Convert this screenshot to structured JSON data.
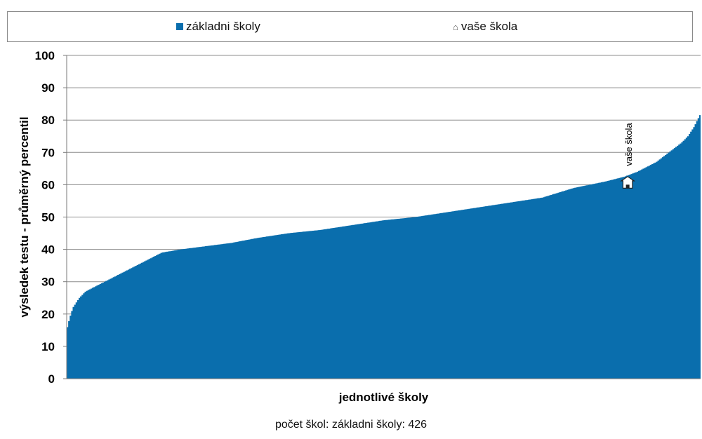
{
  "chart_data": {
    "type": "area",
    "legend": [
      {
        "label": "základni školy",
        "color": "#0a6ead",
        "marker": "square"
      },
      {
        "label": "vaše škola",
        "marker": "house-icon"
      }
    ],
    "legend_position": "top",
    "xlabel": "jednotlivé školy",
    "ylabel": "výsledek testu - průměrný percentil",
    "ylim": [
      0,
      100
    ],
    "yticks": [
      0,
      10,
      20,
      30,
      40,
      50,
      60,
      70,
      80,
      90,
      100
    ],
    "grid": true,
    "series": [
      {
        "name": "základni školy",
        "color": "#0a6ead",
        "x_fraction": [
          0,
          0.005,
          0.01,
          0.02,
          0.03,
          0.05,
          0.07,
          0.09,
          0.12,
          0.15,
          0.18,
          0.22,
          0.26,
          0.3,
          0.35,
          0.4,
          0.45,
          0.5,
          0.55,
          0.6,
          0.65,
          0.7,
          0.75,
          0.8,
          0.85,
          0.88,
          0.9,
          0.93,
          0.95,
          0.97,
          0.98,
          0.99,
          1.0
        ],
        "values": [
          15,
          19,
          22,
          25,
          27,
          29,
          31,
          33,
          36,
          39,
          40,
          41,
          42,
          43.5,
          45,
          46,
          47.5,
          49,
          50,
          51.5,
          53,
          54.5,
          56,
          59,
          61,
          62.5,
          64,
          67,
          70,
          73,
          75,
          78,
          82
        ]
      }
    ],
    "annotations": [
      {
        "label": "vaše škola",
        "icon": "house-icon",
        "x_fraction": 0.885,
        "value": 61
      }
    ],
    "footnote": "počet škol: základni školy: 426"
  }
}
